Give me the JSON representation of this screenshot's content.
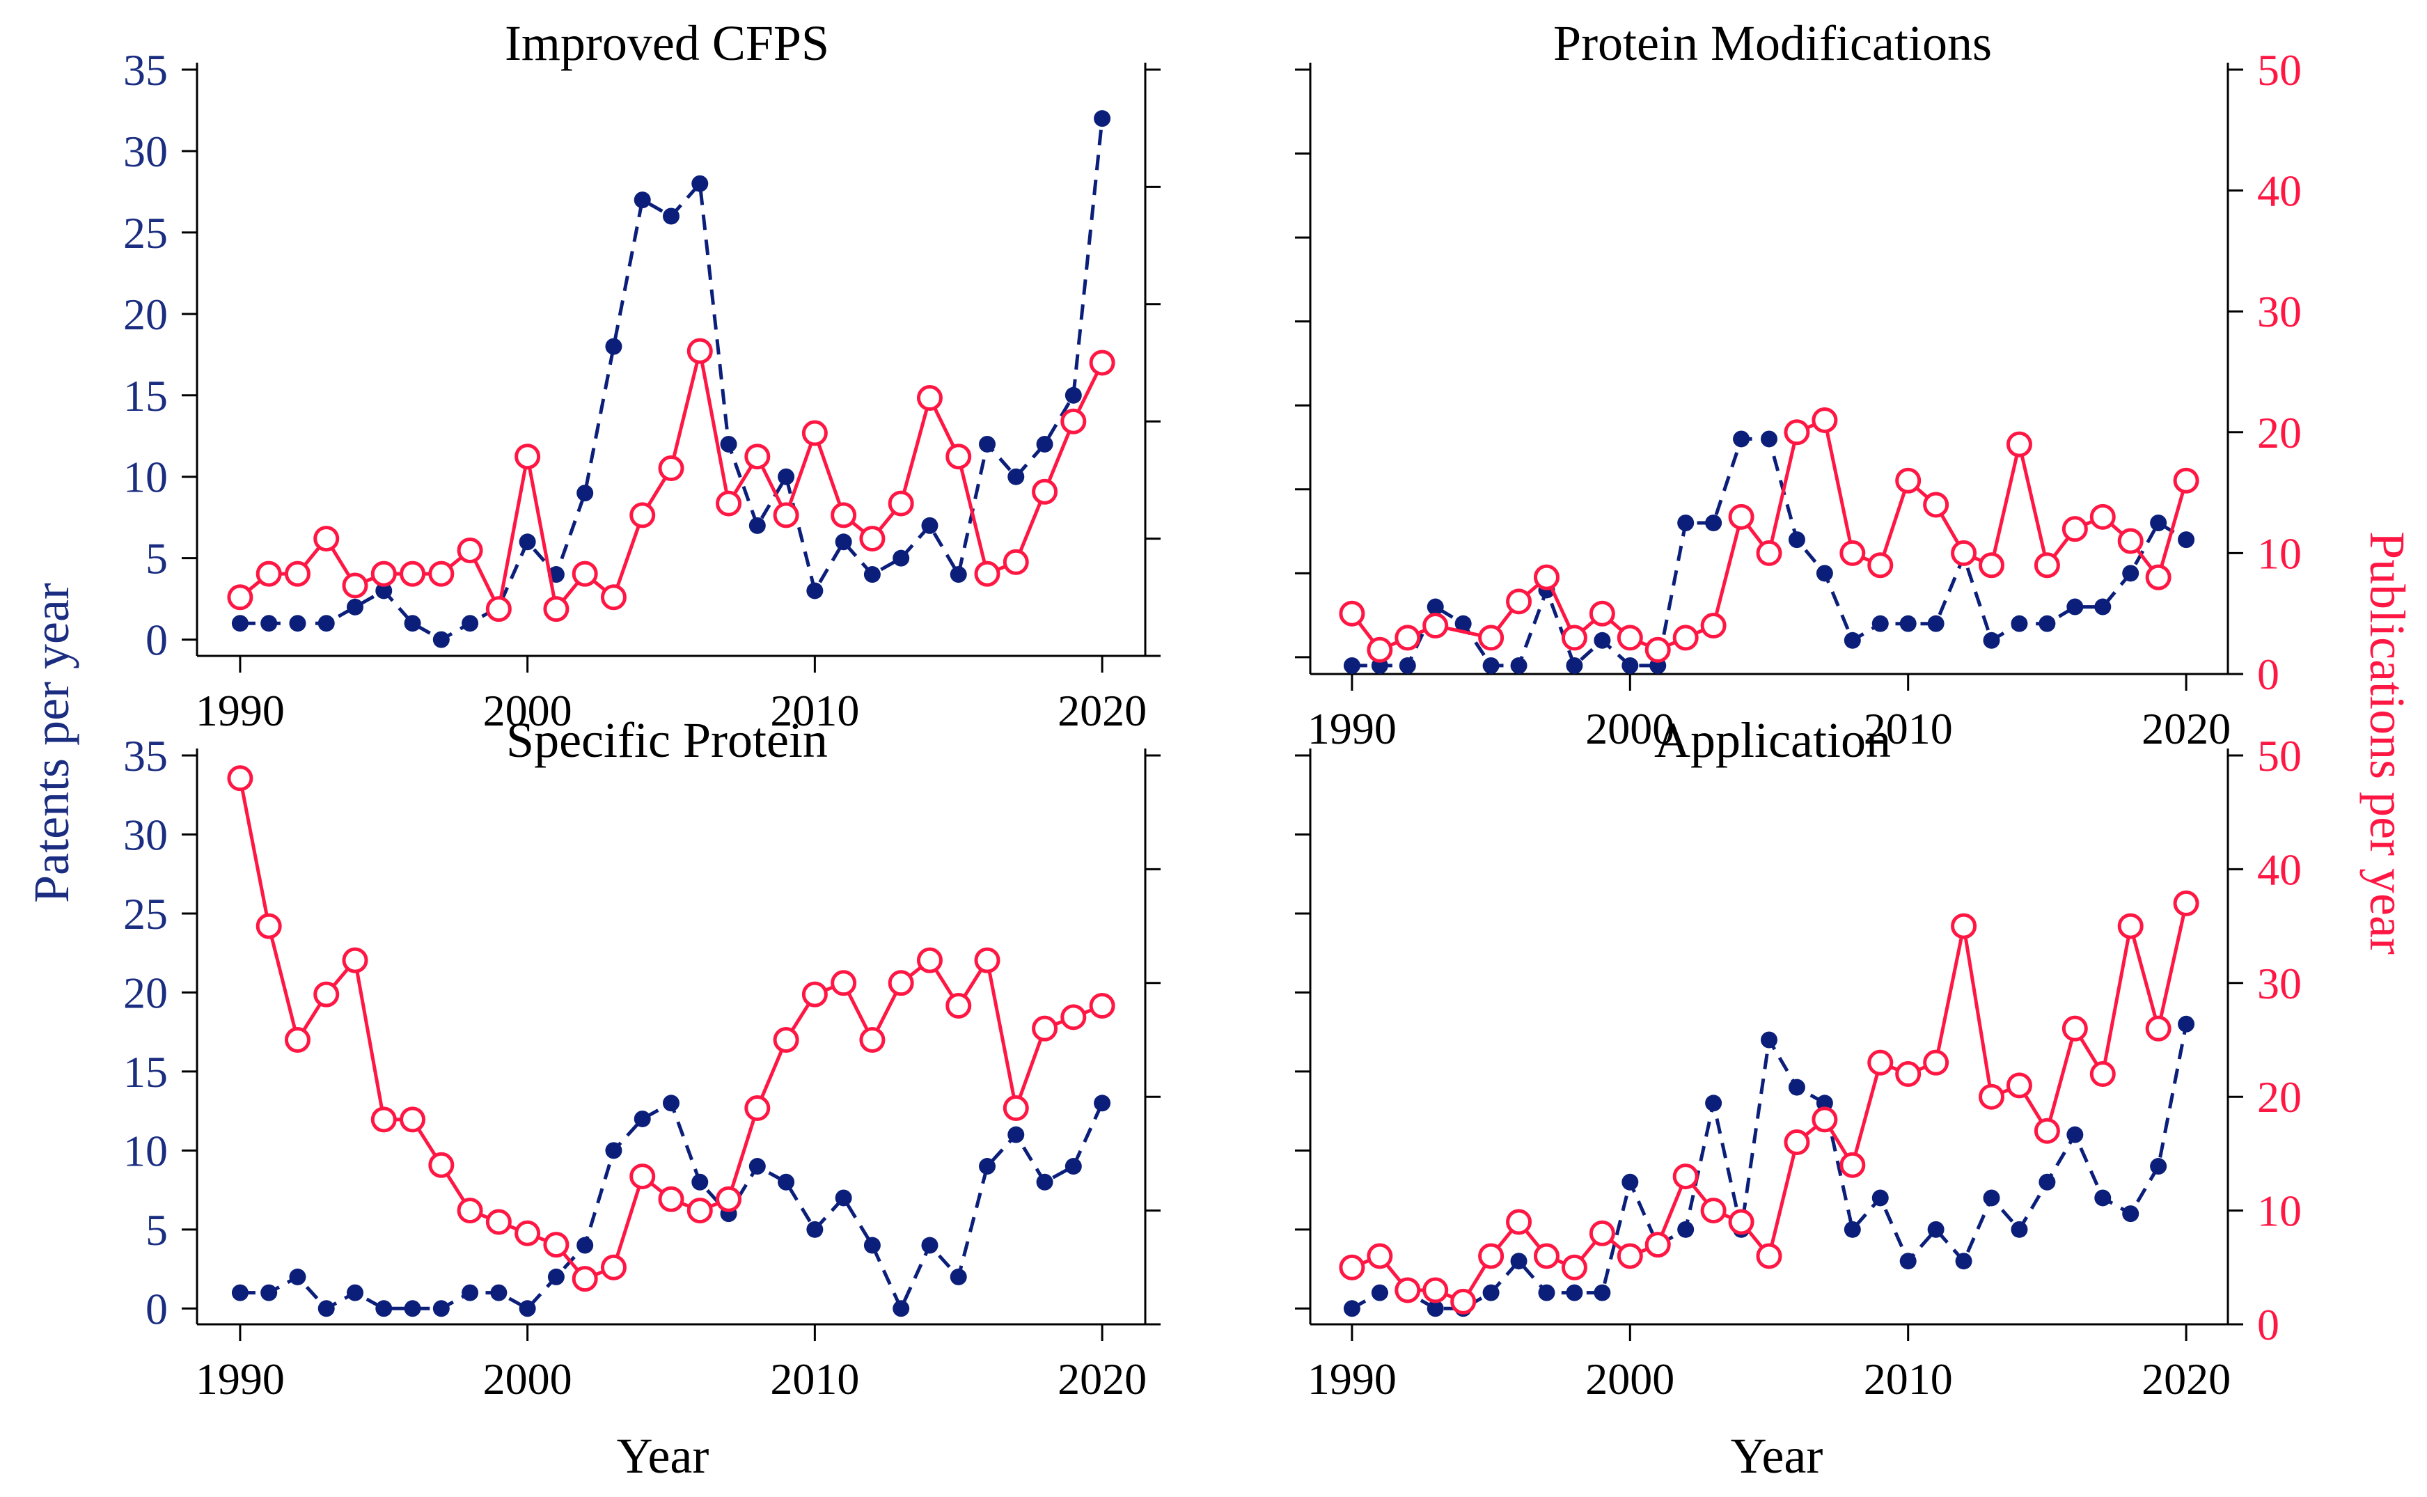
{
  "colors": {
    "patents": "#0b1f7a",
    "patents_axis": "#1a2d80",
    "publications": "#ff1744",
    "axis": "#000000"
  },
  "labels": {
    "xlabel": "Year",
    "ylabel_left": "Patents per year",
    "ylabel_right": "Publications per year"
  },
  "chart_data": [
    {
      "type": "line",
      "title": "Improved CFPS",
      "x": [
        1990,
        1991,
        1992,
        1993,
        1994,
        1995,
        1996,
        1997,
        1998,
        1999,
        2000,
        2001,
        2002,
        2003,
        2004,
        2005,
        2006,
        2007,
        2008,
        2009,
        2010,
        2011,
        2012,
        2013,
        2014,
        2015,
        2016,
        2017,
        2018,
        2019,
        2020
      ],
      "xlim": [
        1988.5,
        2021.5
      ],
      "xticks": [
        1990,
        2000,
        2010,
        2020
      ],
      "y_left": {
        "lim": [
          -1,
          35
        ],
        "ticks": [
          0,
          5,
          10,
          15,
          20,
          25,
          30,
          35
        ],
        "show_labels": true
      },
      "y_right": {
        "lim": [
          0,
          50
        ],
        "ticks": [
          0,
          10,
          20,
          30,
          40,
          50
        ],
        "show_labels": false
      },
      "series": [
        {
          "name": "Patents",
          "axis": "left",
          "style": "dashed-filled-dots",
          "values": [
            1,
            1,
            1,
            1,
            2,
            3,
            1,
            0,
            1,
            2,
            6,
            4,
            9,
            18,
            27,
            26,
            28,
            12,
            7,
            10,
            3,
            6,
            4,
            5,
            7,
            4,
            12,
            10,
            12,
            15,
            32
          ]
        },
        {
          "name": "Publications",
          "axis": "right",
          "style": "solid-open-circles",
          "values": [
            5,
            7,
            7,
            10,
            6,
            7,
            7,
            7,
            9,
            4,
            17,
            4,
            7,
            5,
            12,
            16,
            26,
            13,
            17,
            12,
            19,
            12,
            10,
            13,
            22,
            17,
            7,
            8,
            14,
            20,
            25
          ]
        }
      ]
    },
    {
      "type": "line",
      "title": "Protein Modifications",
      "x": [
        1990,
        1991,
        1992,
        1993,
        1994,
        1995,
        1996,
        1997,
        1998,
        1999,
        2000,
        2001,
        2002,
        2003,
        2004,
        2005,
        2006,
        2007,
        2008,
        2009,
        2010,
        2011,
        2012,
        2013,
        2014,
        2015,
        2016,
        2017,
        2018,
        2019,
        2020
      ],
      "xlim": [
        1988.5,
        2021.5
      ],
      "xticks": [
        1990,
        2000,
        2010,
        2020
      ],
      "y_left": {
        "lim": [
          -1,
          35
        ],
        "ticks": [
          0,
          5,
          10,
          15,
          20,
          25,
          30,
          35
        ],
        "show_labels": false
      },
      "y_right": {
        "lim": [
          0,
          50
        ],
        "ticks": [
          0,
          10,
          20,
          30,
          40,
          50
        ],
        "show_labels": true
      },
      "series": [
        {
          "name": "Patents",
          "axis": "left",
          "style": "dashed-filled-dots",
          "values": [
            -0.5,
            -0.5,
            -0.5,
            3,
            2,
            -0.5,
            -0.5,
            4,
            -0.5,
            1,
            -0.5,
            -0.5,
            8,
            8,
            13,
            13,
            7,
            5,
            1,
            2,
            2,
            2,
            6,
            1,
            2,
            2,
            3,
            3,
            5,
            8,
            7
          ]
        },
        {
          "name": "Publications",
          "axis": "right",
          "style": "solid-open-circles",
          "values": [
            5,
            2,
            3,
            4,
            null,
            3,
            6,
            8,
            3,
            5,
            3,
            2,
            3,
            4,
            13,
            10,
            20,
            21,
            10,
            9,
            16,
            14,
            10,
            9,
            19,
            9,
            12,
            13,
            11,
            8,
            16
          ]
        }
      ]
    },
    {
      "type": "line",
      "title": "Specific Protein",
      "x": [
        1990,
        1991,
        1992,
        1993,
        1994,
        1995,
        1996,
        1997,
        1998,
        1999,
        2000,
        2001,
        2002,
        2003,
        2004,
        2005,
        2006,
        2007,
        2008,
        2009,
        2010,
        2011,
        2012,
        2013,
        2014,
        2015,
        2016,
        2017,
        2018,
        2019,
        2020
      ],
      "xlim": [
        1988.5,
        2021.5
      ],
      "xticks": [
        1990,
        2000,
        2010,
        2020
      ],
      "y_left": {
        "lim": [
          -1,
          35
        ],
        "ticks": [
          0,
          5,
          10,
          15,
          20,
          25,
          30,
          35
        ],
        "show_labels": true
      },
      "y_right": {
        "lim": [
          0,
          50
        ],
        "ticks": [
          0,
          10,
          20,
          30,
          40,
          50
        ],
        "show_labels": false
      },
      "series": [
        {
          "name": "Patents",
          "axis": "left",
          "style": "dashed-filled-dots",
          "values": [
            1,
            1,
            2,
            0,
            1,
            0,
            0,
            0,
            1,
            1,
            0,
            2,
            4,
            10,
            12,
            13,
            8,
            6,
            9,
            8,
            5,
            7,
            4,
            0,
            4,
            2,
            9,
            11,
            8,
            9,
            13
          ]
        },
        {
          "name": "Publications",
          "axis": "right",
          "style": "solid-open-circles",
          "values": [
            48,
            35,
            25,
            29,
            32,
            18,
            18,
            14,
            10,
            9,
            8,
            7,
            4,
            5,
            13,
            11,
            10,
            11,
            19,
            25,
            29,
            30,
            25,
            30,
            32,
            28,
            32,
            19,
            26,
            27,
            28
          ]
        }
      ]
    },
    {
      "type": "line",
      "title": "Application",
      "x": [
        1990,
        1991,
        1992,
        1993,
        1994,
        1995,
        1996,
        1997,
        1998,
        1999,
        2000,
        2001,
        2002,
        2003,
        2004,
        2005,
        2006,
        2007,
        2008,
        2009,
        2010,
        2011,
        2012,
        2013,
        2014,
        2015,
        2016,
        2017,
        2018,
        2019,
        2020
      ],
      "xlim": [
        1988.5,
        2021.5
      ],
      "xticks": [
        1990,
        2000,
        2010,
        2020
      ],
      "y_left": {
        "lim": [
          -1,
          35
        ],
        "ticks": [
          0,
          5,
          10,
          15,
          20,
          25,
          30,
          35
        ],
        "show_labels": false
      },
      "y_right": {
        "lim": [
          0,
          50
        ],
        "ticks": [
          0,
          10,
          20,
          30,
          40,
          50
        ],
        "show_labels": true
      },
      "series": [
        {
          "name": "Patents",
          "axis": "left",
          "style": "dashed-filled-dots",
          "values": [
            0,
            1,
            1,
            0,
            0,
            1,
            3,
            1,
            1,
            1,
            8,
            4,
            5,
            13,
            5,
            17,
            14,
            13,
            5,
            7,
            3,
            5,
            3,
            7,
            5,
            8,
            11,
            7,
            6,
            9,
            18
          ]
        },
        {
          "name": "Publications",
          "axis": "right",
          "style": "solid-open-circles",
          "values": [
            5,
            6,
            3,
            3,
            2,
            6,
            9,
            6,
            5,
            8,
            6,
            7,
            13,
            10,
            9,
            6,
            16,
            18,
            14,
            23,
            22,
            23,
            35,
            20,
            21,
            17,
            26,
            22,
            35,
            26,
            37
          ]
        }
      ]
    }
  ]
}
